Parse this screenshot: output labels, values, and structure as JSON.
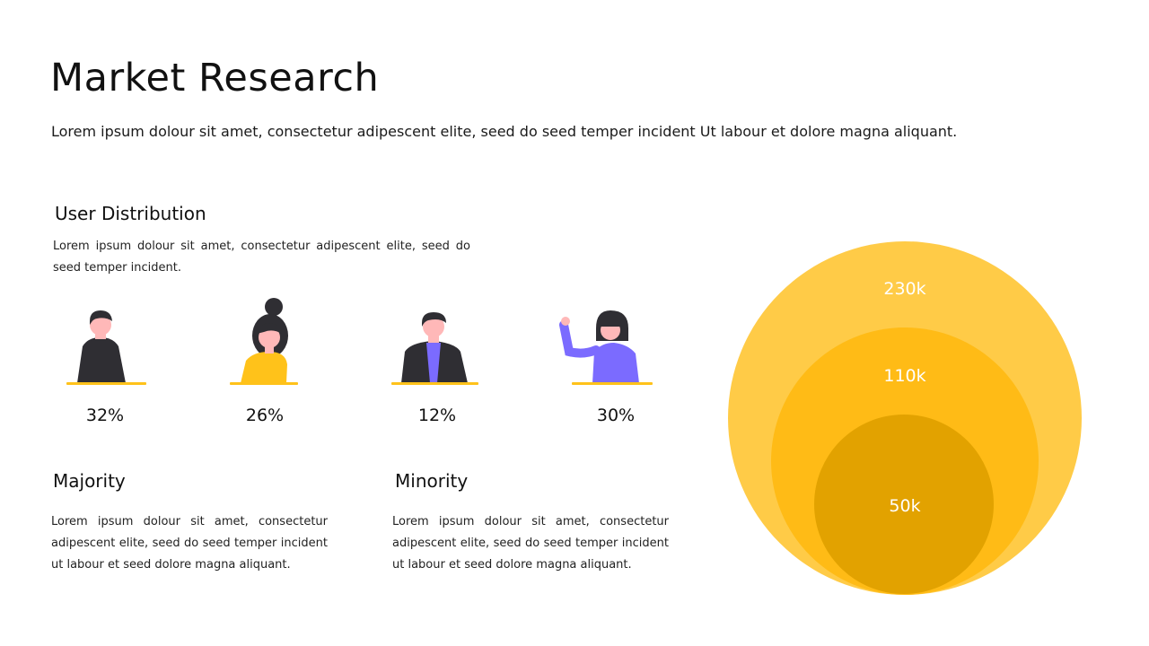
{
  "slide": {
    "title": "Market Research",
    "subtitle": "Lorem ipsum dolour sit amet, consectetur adipescent elite, seed do seed temper incident Ut labour et dolore magna aliquant."
  },
  "user_distribution": {
    "heading": "User Distribution",
    "description": "Lorem ipsum dolour sit amet, consectetur adipescent elite, seed do seed temper incident.",
    "users": [
      {
        "percent": "32%",
        "icon": "man-dark-sweater-icon"
      },
      {
        "percent": "26%",
        "icon": "woman-bun-yellow-sweater-icon"
      },
      {
        "percent": "12%",
        "icon": "man-suit-purple-shirt-icon"
      },
      {
        "percent": "30%",
        "icon": "woman-waving-purple-sweater-icon"
      }
    ]
  },
  "majority": {
    "heading": "Majority",
    "text": "Lorem ipsum dolour sit amet, consectetur adipescent elite, seed do seed temper incident ut labour et seed dolore magna aliquant."
  },
  "minority": {
    "heading": "Minority",
    "text": "Lorem ipsum dolour sit amet, consectetur adipescent elite, seed do seed temper incident ut labour et seed dolore magna aliquant."
  },
  "market_bubbles": {
    "labels": [
      "230k",
      "110k",
      "50k"
    ],
    "colors": [
      "#FFCB47",
      "#FFBB16",
      "#E2A200"
    ]
  },
  "colors": {
    "accent_yellow": "#FFC21A",
    "accent_purple": "#7B6BFF",
    "dark": "#2F2E33",
    "skin": "#FFB8B8"
  }
}
